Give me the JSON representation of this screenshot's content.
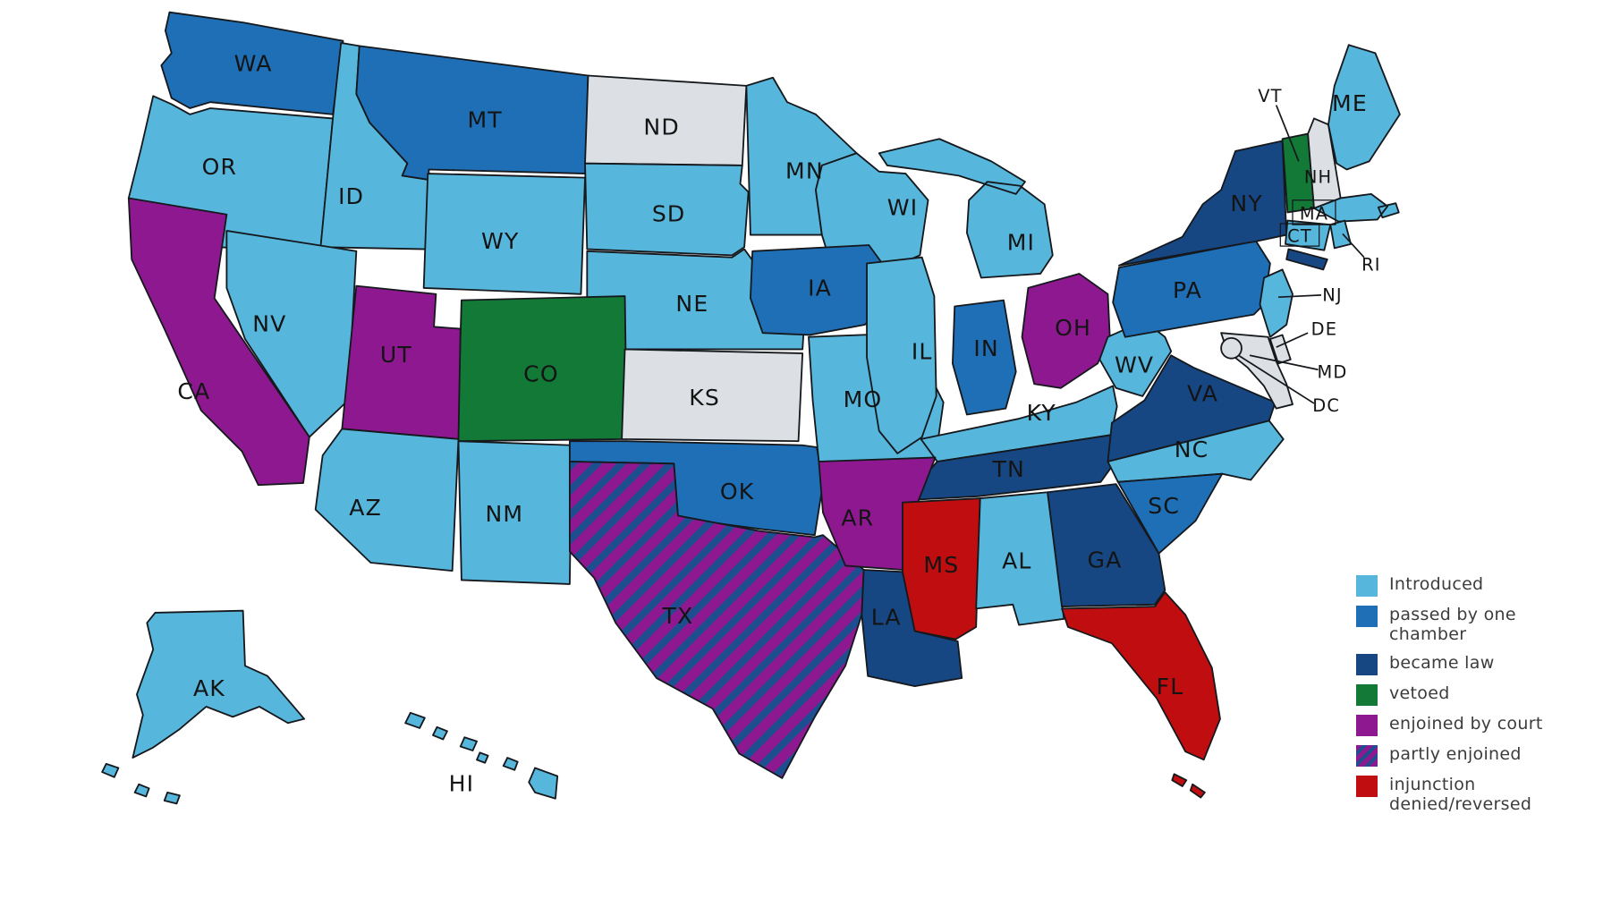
{
  "legend": {
    "items": [
      {
        "key": "introduced",
        "label": "Introduced",
        "color": "#56B6DB"
      },
      {
        "key": "passed_one_chamber",
        "label": "passed by one chamber",
        "color": "#1E6FB6"
      },
      {
        "key": "became_law",
        "label": "became law",
        "color": "#174783"
      },
      {
        "key": "vetoed",
        "label": "vetoed",
        "color": "#137937"
      },
      {
        "key": "enjoined",
        "label": "enjoined by court",
        "color": "#8E188F"
      },
      {
        "key": "partly_enjoined",
        "label": "partly enjoined",
        "pattern": {
          "base": "#8E188F",
          "stripe": "#1C4E90"
        }
      },
      {
        "key": "injunction_denied",
        "label": "injunction denied/reversed",
        "color": "#C00D10"
      }
    ]
  },
  "map": {
    "background": "#FFFFFF",
    "border_color": "#15181C",
    "no_status_color": "#DCE0E4",
    "states": [
      {
        "abbr": "WA",
        "status": "passed_one_chamber"
      },
      {
        "abbr": "OR",
        "status": "introduced"
      },
      {
        "abbr": "ID",
        "status": "introduced"
      },
      {
        "abbr": "MT",
        "status": "passed_one_chamber"
      },
      {
        "abbr": "ND",
        "status": "none"
      },
      {
        "abbr": "SD",
        "status": "introduced"
      },
      {
        "abbr": "MN",
        "status": "introduced"
      },
      {
        "abbr": "WI",
        "status": "introduced"
      },
      {
        "abbr": "MI",
        "status": "introduced"
      },
      {
        "abbr": "WY",
        "status": "introduced"
      },
      {
        "abbr": "NE",
        "status": "introduced"
      },
      {
        "abbr": "CO",
        "status": "vetoed"
      },
      {
        "abbr": "KS",
        "status": "none"
      },
      {
        "abbr": "NV",
        "status": "introduced"
      },
      {
        "abbr": "UT",
        "status": "enjoined"
      },
      {
        "abbr": "CA",
        "status": "enjoined"
      },
      {
        "abbr": "AZ",
        "status": "introduced"
      },
      {
        "abbr": "NM",
        "status": "introduced"
      },
      {
        "abbr": "OK",
        "status": "passed_one_chamber"
      },
      {
        "abbr": "TX",
        "status": "partly_enjoined"
      },
      {
        "abbr": "MO",
        "status": "introduced"
      },
      {
        "abbr": "IA",
        "status": "passed_one_chamber"
      },
      {
        "abbr": "IL",
        "status": "introduced"
      },
      {
        "abbr": "IN",
        "status": "passed_one_chamber"
      },
      {
        "abbr": "OH",
        "status": "enjoined"
      },
      {
        "abbr": "KY",
        "status": "introduced"
      },
      {
        "abbr": "TN",
        "status": "became_law"
      },
      {
        "abbr": "AR",
        "status": "enjoined"
      },
      {
        "abbr": "LA",
        "status": "became_law"
      },
      {
        "abbr": "MS",
        "status": "injunction_denied"
      },
      {
        "abbr": "AL",
        "status": "introduced"
      },
      {
        "abbr": "GA",
        "status": "became_law"
      },
      {
        "abbr": "FL",
        "status": "injunction_denied"
      },
      {
        "abbr": "WV",
        "status": "introduced"
      },
      {
        "abbr": "VA",
        "status": "became_law"
      },
      {
        "abbr": "NC",
        "status": "introduced"
      },
      {
        "abbr": "SC",
        "status": "passed_one_chamber"
      },
      {
        "abbr": "PA",
        "status": "passed_one_chamber"
      },
      {
        "abbr": "NY",
        "status": "became_law"
      },
      {
        "abbr": "NJ",
        "status": "introduced"
      },
      {
        "abbr": "DE",
        "status": "none"
      },
      {
        "abbr": "MD",
        "status": "none"
      },
      {
        "abbr": "VT",
        "status": "vetoed"
      },
      {
        "abbr": "NH",
        "status": "none"
      },
      {
        "abbr": "ME",
        "status": "introduced"
      },
      {
        "abbr": "MA",
        "status": "introduced"
      },
      {
        "abbr": "CT",
        "status": "introduced"
      },
      {
        "abbr": "RI",
        "status": "introduced"
      },
      {
        "abbr": "AK",
        "status": "introduced"
      },
      {
        "abbr": "HI",
        "status": "introduced"
      },
      {
        "abbr": "DC",
        "status": "none"
      }
    ]
  }
}
